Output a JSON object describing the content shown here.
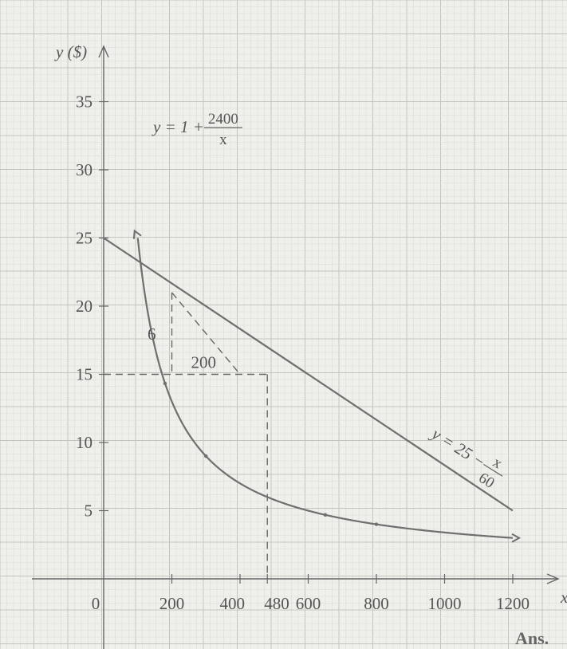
{
  "chart_data": {
    "type": "line",
    "xlim": [
      0,
      1200
    ],
    "ylim": [
      0,
      35
    ],
    "x_ticks": [
      200,
      400,
      480,
      600,
      800,
      1000,
      1200
    ],
    "x_tick_labels": [
      "200",
      "400",
      "480",
      "600",
      "800",
      "1000",
      "1200"
    ],
    "y_ticks": [
      5,
      10,
      15,
      20,
      25,
      30,
      35
    ],
    "y_tick_labels": [
      "5",
      "10",
      "15",
      "20",
      "25",
      "30",
      "35"
    ],
    "origin_label": "0",
    "ylabel": "y ($)",
    "xlabel": "x",
    "grid": true,
    "series": [
      {
        "name": "y = 1 + 2400/x",
        "label_parts": {
          "lhs": "y = 1 + ",
          "numerator": "2400",
          "denominator": "x"
        },
        "x": [
          100,
          120,
          150,
          200,
          240,
          300,
          350,
          400,
          480,
          550,
          600,
          700,
          800,
          900,
          1000,
          1100,
          1200
        ],
        "y": [
          25,
          21,
          17,
          13,
          11,
          9,
          7.86,
          7,
          6,
          5.36,
          5,
          4.43,
          4,
          3.67,
          3.4,
          3.18,
          3
        ]
      },
      {
        "name": "y = 25 − x/60",
        "label_parts": {
          "lhs": "y = 25 − ",
          "numerator": "x",
          "denominator": "60"
        },
        "x": [
          0,
          1200
        ],
        "y": [
          25,
          5
        ]
      }
    ],
    "annotations": {
      "tangent_rise": "6",
      "tangent_run": "200",
      "reference_x": 480,
      "reference_y": 15
    }
  },
  "footer": {
    "ans_label": "Ans."
  }
}
